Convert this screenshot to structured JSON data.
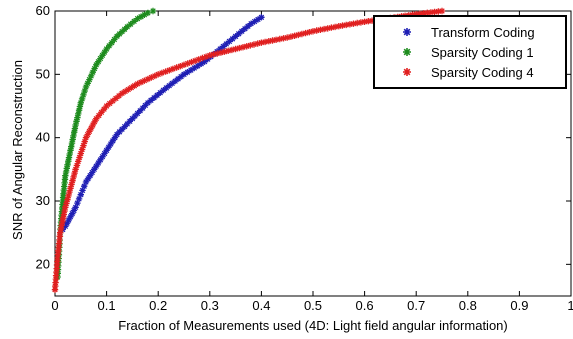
{
  "chart_data": {
    "type": "scatter",
    "xlabel": "Fraction of Measurements used (4D: Light field angular information)",
    "ylabel": "SNR of Angular Reconstruction",
    "xlim": [
      0,
      1
    ],
    "ylim": [
      15,
      60
    ],
    "xticks": [
      "0",
      "0.1",
      "0.2",
      "0.3",
      "0.4",
      "0.5",
      "0.6",
      "0.7",
      "0.8",
      "0.9",
      "1"
    ],
    "yticks": [
      "20",
      "30",
      "40",
      "50",
      "60"
    ],
    "grid": false,
    "legend_position": "top-right",
    "marker": "*",
    "series": [
      {
        "name": "Transform Coding",
        "color": "#1f1fb4",
        "x": [
          0.01,
          0.02,
          0.03,
          0.04,
          0.05,
          0.06,
          0.08,
          0.1,
          0.12,
          0.15,
          0.18,
          0.21,
          0.25,
          0.29,
          0.32,
          0.35,
          0.38,
          0.4
        ],
        "y": [
          25,
          26,
          27.5,
          29,
          31,
          33,
          35.5,
          38,
          40.5,
          43,
          45.5,
          47.5,
          50,
          52,
          54,
          56,
          58,
          59
        ]
      },
      {
        "name": "Sparsity Coding 1",
        "color": "#1e8c1e",
        "x": [
          0.005,
          0.01,
          0.015,
          0.02,
          0.03,
          0.04,
          0.05,
          0.06,
          0.08,
          0.1,
          0.12,
          0.14,
          0.16,
          0.18,
          0.19
        ],
        "y": [
          18,
          25,
          30,
          34,
          38,
          42,
          45.5,
          48,
          51.5,
          54,
          56,
          57.5,
          58.8,
          59.7,
          60
        ]
      },
      {
        "name": "Sparsity Coding 4",
        "color": "#e02020",
        "x": [
          0.0,
          0.005,
          0.01,
          0.02,
          0.03,
          0.04,
          0.05,
          0.06,
          0.08,
          0.1,
          0.13,
          0.16,
          0.2,
          0.25,
          0.3,
          0.35,
          0.4,
          0.45,
          0.5,
          0.55,
          0.6,
          0.65,
          0.7,
          0.75
        ],
        "y": [
          16,
          21,
          25,
          29,
          32,
          35,
          37.5,
          40,
          43,
          45,
          47,
          48.5,
          50,
          51.5,
          53,
          54,
          55,
          55.8,
          56.8,
          57.6,
          58.3,
          58.9,
          59.5,
          60
        ]
      }
    ]
  }
}
